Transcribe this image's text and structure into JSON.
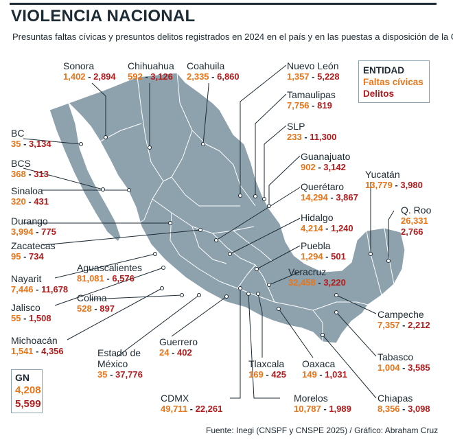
{
  "title": "VIOLENCIA NACIONAL",
  "subtitle": "Presuntas faltas cívicas y presuntos delitos registrados en 2024 en el país y en las puestas a disposición de la GN:",
  "legend": {
    "entity": "ENTIDAD",
    "civic": "Faltas cívicas",
    "crimes": "Delitos"
  },
  "colors": {
    "civic": "#e8751a",
    "crimes": "#b01c1c",
    "land": "#8ea2ad",
    "text": "#1c2a33"
  },
  "gn": {
    "label": "GN",
    "civic": "4,208",
    "crimes": "5,599"
  },
  "states": [
    {
      "name": "Sonora",
      "civic": "1,402",
      "crimes": "2,894"
    },
    {
      "name": "Chihuahua",
      "civic": "592",
      "crimes": "3,126"
    },
    {
      "name": "Coahuila",
      "civic": "2,335",
      "crimes": "6,860"
    },
    {
      "name": "Nuevo León",
      "civic": "1,357",
      "crimes": "5,228"
    },
    {
      "name": "Tamaulipas",
      "civic": "7,756",
      "crimes": "819"
    },
    {
      "name": "SLP",
      "civic": "233",
      "crimes": "11,300"
    },
    {
      "name": "Guanajuato",
      "civic": "902",
      "crimes": "3,142"
    },
    {
      "name": "Querétaro",
      "civic": "14,294",
      "crimes": "3,867"
    },
    {
      "name": "Hidalgo",
      "civic": "4,214",
      "crimes": "1,240"
    },
    {
      "name": "Puebla",
      "civic": "1,294",
      "crimes": "501"
    },
    {
      "name": "Veracruz",
      "civic": "32,458",
      "crimes": "3,220"
    },
    {
      "name": "Yucatán",
      "civic": "13,779",
      "crimes": "3,980"
    },
    {
      "name": "Q. Roo",
      "civic": "26,331",
      "crimes": "2,766"
    },
    {
      "name": "Campeche",
      "civic": "7,357",
      "crimes": "2,212"
    },
    {
      "name": "Tabasco",
      "civic": "1,004",
      "crimes": "3,585"
    },
    {
      "name": "Chiapas",
      "civic": "8,356",
      "crimes": "3,098"
    },
    {
      "name": "Oaxaca",
      "civic": "149",
      "crimes": "1,031"
    },
    {
      "name": "Morelos",
      "civic": "10,787",
      "crimes": "1,989"
    },
    {
      "name": "Tlaxcala",
      "civic": "169",
      "crimes": "425"
    },
    {
      "name": "CDMX",
      "civic": "49,711",
      "crimes": "22,261"
    },
    {
      "name": "Guerrero",
      "civic": "24",
      "crimes": "402"
    },
    {
      "name": "Estado de",
      "name2": "México",
      "civic": "35",
      "crimes": "37,776"
    },
    {
      "name": "Michoacán",
      "civic": "1,541",
      "crimes": "4,356"
    },
    {
      "name": "Colima",
      "civic": "528",
      "crimes": "897"
    },
    {
      "name": "Jalisco",
      "civic": "55",
      "crimes": "1,508"
    },
    {
      "name": "Aguascalientes",
      "civic": "81,081",
      "crimes": "6,576"
    },
    {
      "name": "Nayarit",
      "civic": "7,446",
      "crimes": "11,678"
    },
    {
      "name": "Zacatecas",
      "civic": "95",
      "crimes": "734"
    },
    {
      "name": "Durango",
      "civic": "3,994",
      "crimes": "775"
    },
    {
      "name": "Sinaloa",
      "civic": "320",
      "crimes": "431"
    },
    {
      "name": "BCS",
      "civic": "368",
      "crimes": "313"
    },
    {
      "name": "BC",
      "civic": "35",
      "crimes": "3,134"
    }
  ],
  "footer": "Fuente: Inegi (CNSPF y CNSPE 2025) / Gráfico: Abraham Cruz"
}
